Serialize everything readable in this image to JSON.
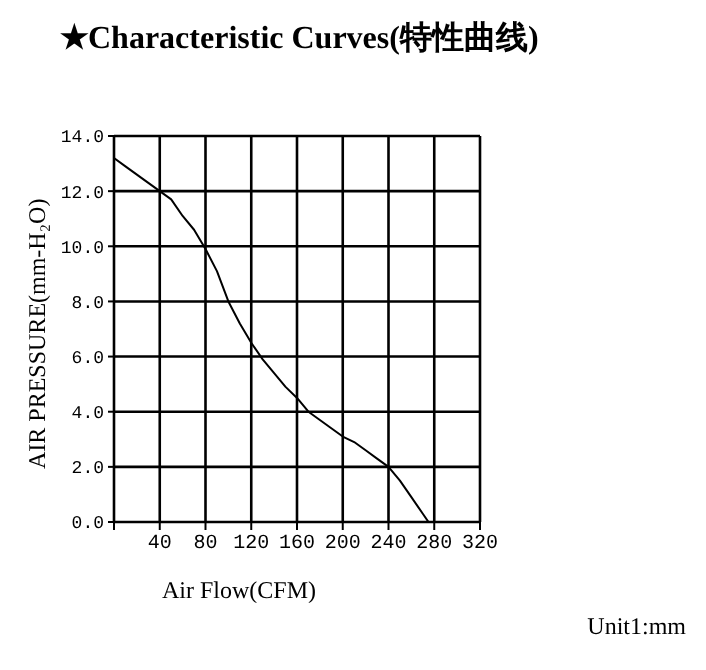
{
  "chart_data": {
    "type": "line",
    "title": "★Characteristic Curves(特性曲线)",
    "xlabel": "Air Flow(CFM)",
    "ylabel": "AIR PRESSURE(mm-H₂O)",
    "annotations": [
      "Unit1:mm"
    ],
    "x": [
      0,
      10,
      20,
      30,
      40,
      50,
      60,
      70,
      80,
      90,
      100,
      110,
      120,
      130,
      140,
      150,
      160,
      170,
      180,
      190,
      200,
      210,
      220,
      230,
      240,
      250,
      260,
      270,
      275
    ],
    "series": [
      {
        "color": "#000000",
        "values": [
          13.2,
          12.9,
          12.6,
          12.3,
          12.0,
          11.7,
          11.1,
          10.6,
          9.9,
          9.1,
          8.0,
          7.2,
          6.5,
          5.9,
          5.4,
          4.9,
          4.5,
          4.0,
          3.7,
          3.4,
          3.1,
          2.9,
          2.6,
          2.3,
          2.0,
          1.5,
          0.9,
          0.3,
          0
        ]
      }
    ],
    "xlim": [
      0,
      320
    ],
    "xticks": [
      {
        "value": 0,
        "label": null
      },
      40,
      80,
      120,
      160,
      200,
      240,
      280,
      320
    ],
    "ylim": [
      0,
      14
    ],
    "yticks": [
      {
        "value": 0,
        "label": "0.0"
      },
      {
        "value": 2,
        "label": "2.0"
      },
      {
        "value": 4,
        "label": "4.0"
      },
      {
        "value": 6,
        "label": "6.0"
      },
      {
        "value": 8,
        "label": "8.0"
      },
      {
        "value": 10,
        "label": "10.0"
      },
      {
        "value": 12,
        "label": "12.0"
      },
      {
        "value": 14,
        "label": "14.0"
      }
    ],
    "grid": true,
    "legend": false,
    "marker": "none",
    "line_style": "solid"
  }
}
